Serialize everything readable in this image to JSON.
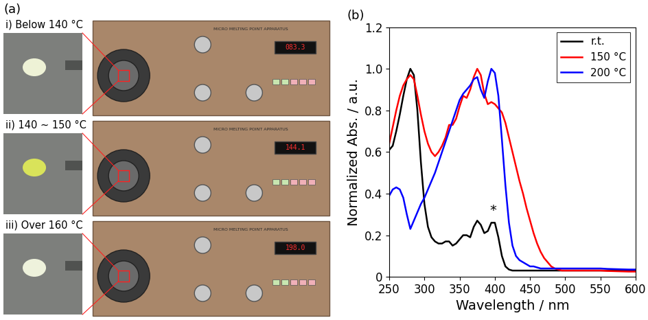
{
  "panel_a": {
    "label": "(a)",
    "items": [
      {
        "caption": "i) Below 140 °C",
        "display": "083.3",
        "color": "#eef2d6"
      },
      {
        "caption": "ii) 140 ~ 150 °C",
        "display": "144.1",
        "color": "#d9e35a"
      },
      {
        "caption": "iii) Over 160 °C",
        "display": "198.0",
        "color": "#eef2dc"
      }
    ],
    "apparatus": "MICRO MELTING POINT APPARATUS"
  },
  "panel_b": {
    "label": "(b)"
  },
  "chart_data": {
    "type": "line",
    "x_label": "Wavelength / nm",
    "y_label": "Normalized Abs. / a.u.",
    "x": [
      250,
      255,
      260,
      265,
      270,
      275,
      280,
      285,
      290,
      295,
      300,
      305,
      310,
      315,
      320,
      325,
      330,
      335,
      340,
      345,
      350,
      355,
      360,
      365,
      370,
      375,
      380,
      385,
      390,
      395,
      400,
      405,
      410,
      415,
      420,
      425,
      430,
      435,
      440,
      445,
      450,
      455,
      460,
      465,
      470,
      475,
      480,
      485,
      490,
      495,
      500,
      510,
      520,
      530,
      540,
      550,
      560,
      570,
      580,
      590,
      600
    ],
    "series": [
      {
        "name": "r.t.",
        "color": "#000000",
        "values": [
          0.61,
          0.63,
          0.7,
          0.78,
          0.87,
          0.95,
          1.0,
          0.97,
          0.8,
          0.55,
          0.35,
          0.24,
          0.19,
          0.17,
          0.16,
          0.16,
          0.17,
          0.17,
          0.15,
          0.16,
          0.18,
          0.2,
          0.2,
          0.19,
          0.24,
          0.27,
          0.25,
          0.21,
          0.22,
          0.26,
          0.26,
          0.19,
          0.1,
          0.05,
          0.035,
          0.03,
          0.03,
          0.03,
          0.03,
          0.03,
          0.03,
          0.03,
          0.03,
          0.03,
          0.03,
          0.03,
          0.03,
          0.03,
          0.03,
          0.03,
          0.03,
          0.03,
          0.03,
          0.03,
          0.03,
          0.03,
          0.03,
          0.03,
          0.03,
          0.03,
          0.03
        ]
      },
      {
        "name": "150 °C",
        "color": "#ff0000",
        "values": [
          0.64,
          0.72,
          0.8,
          0.87,
          0.92,
          0.95,
          0.97,
          0.95,
          0.87,
          0.78,
          0.7,
          0.64,
          0.6,
          0.58,
          0.6,
          0.63,
          0.67,
          0.73,
          0.73,
          0.76,
          0.82,
          0.87,
          0.86,
          0.9,
          0.96,
          1.0,
          0.97,
          0.88,
          0.83,
          0.84,
          0.83,
          0.81,
          0.79,
          0.74,
          0.67,
          0.6,
          0.53,
          0.46,
          0.4,
          0.33,
          0.27,
          0.21,
          0.16,
          0.12,
          0.09,
          0.07,
          0.05,
          0.04,
          0.035,
          0.03,
          0.03,
          0.03,
          0.03,
          0.03,
          0.03,
          0.03,
          0.028,
          0.027,
          0.026,
          0.025,
          0.025
        ]
      },
      {
        "name": "200 °C",
        "color": "#0000ff",
        "values": [
          0.39,
          0.42,
          0.43,
          0.42,
          0.38,
          0.3,
          0.23,
          0.27,
          0.31,
          0.35,
          0.38,
          0.42,
          0.46,
          0.5,
          0.55,
          0.6,
          0.65,
          0.7,
          0.75,
          0.8,
          0.85,
          0.88,
          0.9,
          0.92,
          0.95,
          0.96,
          0.9,
          0.86,
          0.94,
          1.0,
          0.98,
          0.87,
          0.66,
          0.44,
          0.26,
          0.15,
          0.1,
          0.08,
          0.07,
          0.06,
          0.05,
          0.05,
          0.045,
          0.04,
          0.04,
          0.04,
          0.04,
          0.04,
          0.04,
          0.04,
          0.04,
          0.04,
          0.04,
          0.04,
          0.04,
          0.04,
          0.038,
          0.037,
          0.036,
          0.035,
          0.035
        ]
      }
    ],
    "annotations": [
      {
        "text": "*",
        "x": 397,
        "y": 0.26
      }
    ],
    "xlim": [
      250,
      600
    ],
    "xticks": [
      250,
      300,
      350,
      400,
      450,
      500,
      550,
      600
    ],
    "ylim": [
      0,
      1.2
    ],
    "yticks": [
      0,
      0.2,
      0.4,
      0.6,
      0.8,
      {
        "value": 1,
        "label": "1.0"
      },
      1.2
    ],
    "legend": "upper right"
  }
}
